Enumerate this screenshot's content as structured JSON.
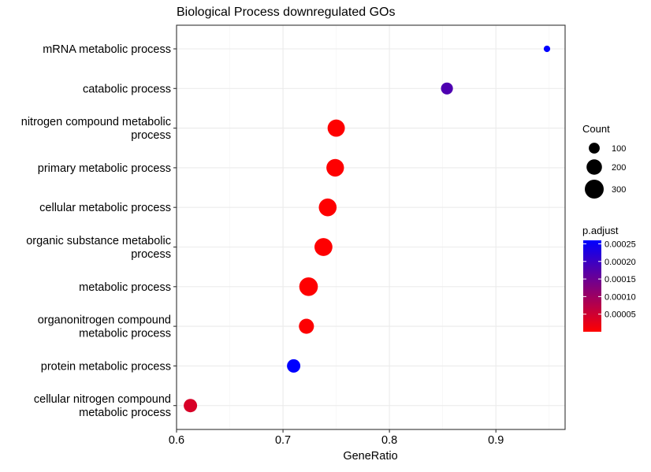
{
  "chart_data": {
    "type": "scatter",
    "title": "Biological Process downregulated GOs",
    "xlabel": "GeneRatio",
    "ylabel": "",
    "xlim": [
      0.6,
      0.965
    ],
    "xticks": [
      "0.6",
      "0.7",
      "0.8",
      "0.9"
    ],
    "xtick_values": [
      0.6,
      0.7,
      0.8,
      0.9
    ],
    "grid": true,
    "categories": [
      "mRNA metabolic process",
      "catabolic process",
      "nitrogen compound metabolic process",
      "primary metabolic process",
      "cellular metabolic process",
      "organic substance metabolic process",
      "metabolic process",
      "organonitrogen compound metabolic process",
      "protein metabolic process",
      "cellular nitrogen compound metabolic process"
    ],
    "category_label_lines": [
      [
        "mRNA metabolic process"
      ],
      [
        "catabolic process"
      ],
      [
        "nitrogen compound metabolic",
        "process"
      ],
      [
        "primary metabolic process"
      ],
      [
        "cellular metabolic process"
      ],
      [
        "organic substance metabolic",
        "process"
      ],
      [
        "metabolic process"
      ],
      [
        "organonitrogen compound",
        "metabolic process"
      ],
      [
        "protein metabolic process"
      ],
      [
        "cellular nitrogen compound",
        "metabolic process"
      ]
    ],
    "points": [
      {
        "category": "mRNA metabolic process",
        "gene_ratio": 0.948,
        "count": 35,
        "p_adjust": 0.00026
      },
      {
        "category": "catabolic process",
        "gene_ratio": 0.854,
        "count": 120,
        "p_adjust": 0.00018
      },
      {
        "category": "nitrogen compound metabolic process",
        "gene_ratio": 0.75,
        "count": 250,
        "p_adjust": 1e-06
      },
      {
        "category": "primary metabolic process",
        "gene_ratio": 0.749,
        "count": 260,
        "p_adjust": 1e-06
      },
      {
        "category": "cellular metabolic process",
        "gene_ratio": 0.742,
        "count": 265,
        "p_adjust": 1e-06
      },
      {
        "category": "organic substance metabolic process",
        "gene_ratio": 0.738,
        "count": 270,
        "p_adjust": 1e-06
      },
      {
        "category": "metabolic process",
        "gene_ratio": 0.724,
        "count": 290,
        "p_adjust": 1e-06
      },
      {
        "category": "organonitrogen compound metabolic process",
        "gene_ratio": 0.722,
        "count": 190,
        "p_adjust": 2e-06
      },
      {
        "category": "protein metabolic process",
        "gene_ratio": 0.71,
        "count": 150,
        "p_adjust": 0.00026
      },
      {
        "category": "cellular nitrogen compound metabolic process",
        "gene_ratio": 0.613,
        "count": 150,
        "p_adjust": 4e-05
      }
    ],
    "size_legend": {
      "title": "Count",
      "entries": [
        {
          "label": "100",
          "value": 100
        },
        {
          "label": "200",
          "value": 200
        },
        {
          "label": "300",
          "value": 300
        }
      ]
    },
    "color_legend": {
      "title": "p.adjust",
      "range": [
        0.0,
        0.00026
      ],
      "low_color": "#ff0000",
      "high_color": "#0000ff",
      "ticks": [
        {
          "label": "0.00025",
          "value": 0.00025
        },
        {
          "label": "0.00020",
          "value": 0.0002
        },
        {
          "label": "0.00015",
          "value": 0.00015
        },
        {
          "label": "0.00010",
          "value": 0.0001
        },
        {
          "label": "0.00005",
          "value": 5e-05
        }
      ]
    },
    "colors": {
      "grid": "#ebebeb",
      "panel_border": "#333333",
      "text": "#000000",
      "tick_text": "#4d4d4d",
      "background": "#ffffff"
    }
  }
}
